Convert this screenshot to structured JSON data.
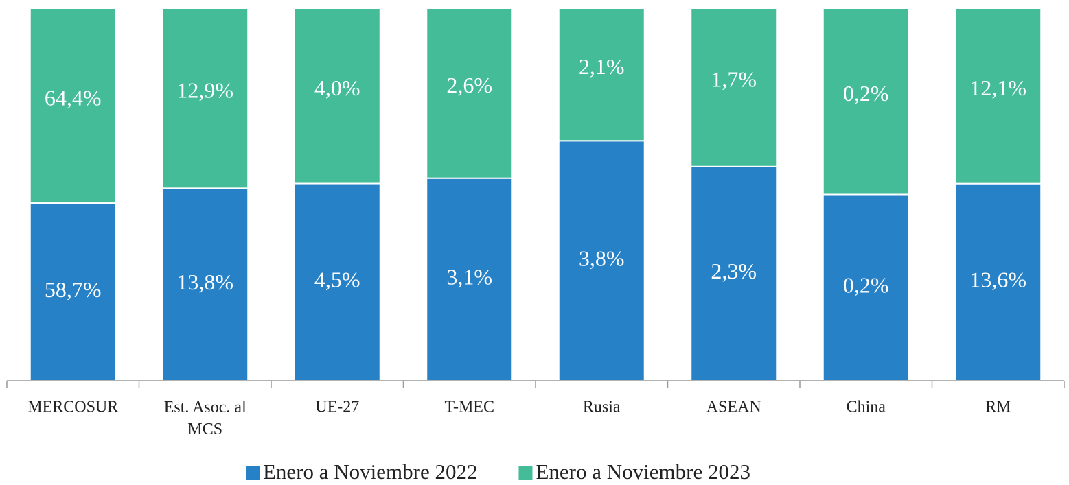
{
  "chart_data": {
    "type": "bar",
    "stacking": "percent",
    "categories": [
      "MERCOSUR",
      "Est. Asoc. al MCS",
      "UE-27",
      "T-MEC",
      "Rusia",
      "ASEAN",
      "China",
      "RM"
    ],
    "series": [
      {
        "name": "Enero a Noviembre 2022",
        "color": "#2781c7",
        "values": [
          58.7,
          13.8,
          4.5,
          3.1,
          3.8,
          2.3,
          0.2,
          13.6
        ],
        "value_labels": [
          "58,7%",
          "13,8%",
          "4,5%",
          "3,1%",
          "3,8%",
          "2,3%",
          "0,2%",
          "13,6%"
        ]
      },
      {
        "name": "Enero a Noviembre 2023",
        "color": "#43bc97",
        "values": [
          64.4,
          12.9,
          4.0,
          2.6,
          2.1,
          1.7,
          0.2,
          12.1
        ],
        "value_labels": [
          "64,4%",
          "12,9%",
          "4,0%",
          "2,6%",
          "2,1%",
          "1,7%",
          "0,2%",
          "12,1%"
        ]
      }
    ],
    "legend": "bottom"
  }
}
